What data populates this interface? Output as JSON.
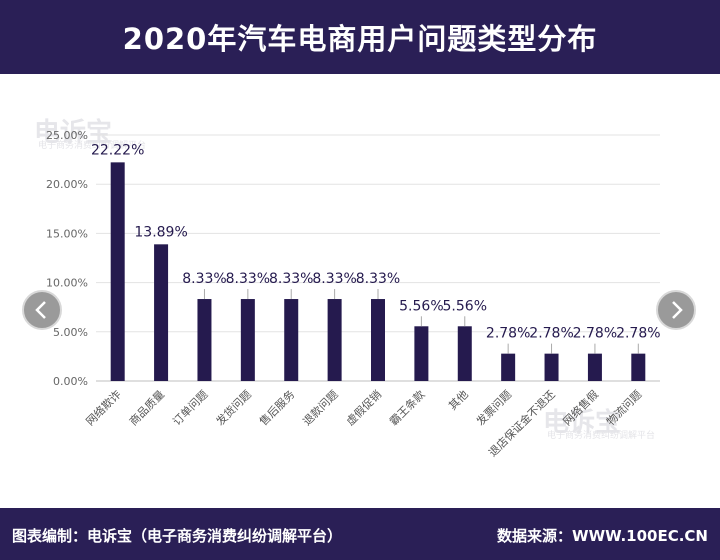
{
  "header": {
    "title": "2020年汽车电商用户问题类型分布"
  },
  "footer": {
    "credit": "图表编制：电诉宝（电子商务消费纠纷调解平台）",
    "source": "数据来源：WWW.100EC.CN"
  },
  "watermark": {
    "brand": "电诉宝",
    "sub": "电子商务消费纠纷调解平台"
  },
  "nav": {
    "prev_icon": "chevron-left-icon",
    "next_icon": "chevron-right-icon"
  },
  "colors": {
    "header_bg": "#2a1f56",
    "bar": "#251a4e",
    "label": "#251a4e"
  },
  "chart_data": {
    "type": "bar",
    "title": "2020年汽车电商用户问题类型分布",
    "xlabel": "",
    "ylabel": "",
    "categories": [
      "网络欺诈",
      "商品质量",
      "订单问题",
      "发货问题",
      "售后服务",
      "退款问题",
      "虚假促销",
      "霸王条款",
      "其他",
      "发票问题",
      "退店保证金不退还",
      "网络售假",
      "物流问题"
    ],
    "values": [
      22.22,
      13.89,
      8.33,
      8.33,
      8.33,
      8.33,
      8.33,
      5.56,
      5.56,
      2.78,
      2.78,
      2.78,
      2.78
    ],
    "data_labels": [
      "22.22%",
      "13.89%",
      "8.33%",
      "8.33%",
      "8.33%",
      "8.33%",
      "8.33%",
      "5.56%",
      "5.56%",
      "2.78%",
      "2.78%",
      "2.78%",
      "2.78%"
    ],
    "ylim": [
      0,
      25
    ],
    "yticks": [
      0,
      5,
      10,
      15,
      20,
      25
    ],
    "ytick_labels": [
      "0.00%",
      "5.00%",
      "10.00%",
      "15.00%",
      "20.00%",
      "25.00%"
    ],
    "grid": true,
    "legend": "none"
  }
}
